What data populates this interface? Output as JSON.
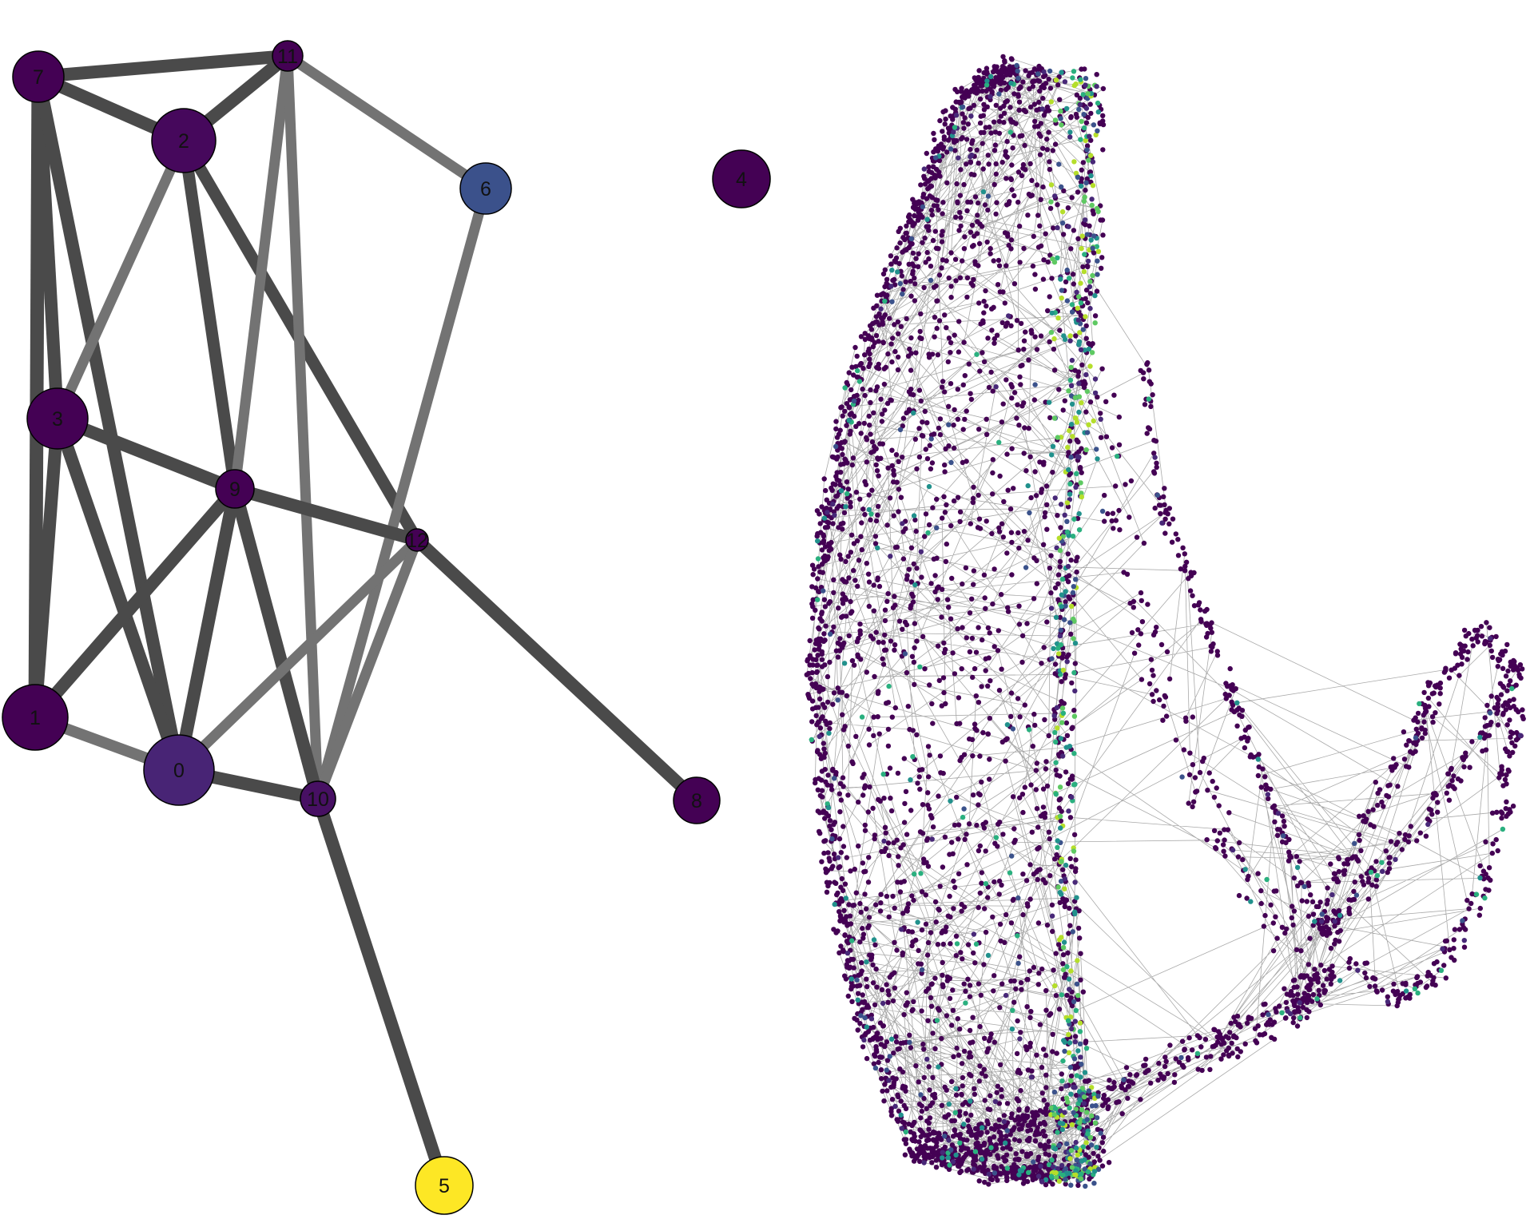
{
  "colors": {
    "edge": "#4a4a4a",
    "edge_light": "#737373",
    "cell_edge": "#8c8c8c",
    "viridis_low": "#440154",
    "viridis_mid_low": "#482878",
    "viridis_mid": "#3b528b",
    "viridis_teal": "#21918c",
    "viridis_green": "#5ec962",
    "viridis_high": "#fde725"
  },
  "paga_graph": {
    "nodes": [
      {
        "id": "0",
        "label": "0",
        "color": "#482475"
      },
      {
        "id": "1",
        "label": "1",
        "color": "#440154"
      },
      {
        "id": "2",
        "label": "2",
        "color": "#46085c"
      },
      {
        "id": "3",
        "label": "3",
        "color": "#440154"
      },
      {
        "id": "4",
        "label": "4",
        "color": "#440154"
      },
      {
        "id": "5",
        "label": "5",
        "color": "#fde725"
      },
      {
        "id": "6",
        "label": "6",
        "color": "#3b518b"
      },
      {
        "id": "7",
        "label": "7",
        "color": "#440154"
      },
      {
        "id": "8",
        "label": "8",
        "color": "#440154"
      },
      {
        "id": "9",
        "label": "9",
        "color": "#440154"
      },
      {
        "id": "10",
        "label": "10",
        "color": "#471063"
      },
      {
        "id": "11",
        "label": "11",
        "color": "#440154"
      },
      {
        "id": "12",
        "label": "12",
        "color": "#440154"
      }
    ],
    "edges": [
      {
        "source": "7",
        "target": "11",
        "weight": 0.9
      },
      {
        "source": "7",
        "target": "2",
        "weight": 0.85
      },
      {
        "source": "7",
        "target": "3",
        "weight": 0.9
      },
      {
        "source": "7",
        "target": "1",
        "weight": 1.0
      },
      {
        "source": "7",
        "target": "0",
        "weight": 0.85
      },
      {
        "source": "2",
        "target": "11",
        "weight": 0.85
      },
      {
        "source": "2",
        "target": "3",
        "weight": 0.6
      },
      {
        "source": "2",
        "target": "9",
        "weight": 0.8
      },
      {
        "source": "2",
        "target": "12",
        "weight": 0.8
      },
      {
        "source": "11",
        "target": "6",
        "weight": 0.6
      },
      {
        "source": "11",
        "target": "9",
        "weight": 0.6
      },
      {
        "source": "11",
        "target": "10",
        "weight": 0.6
      },
      {
        "source": "6",
        "target": "10",
        "weight": 0.6
      },
      {
        "source": "3",
        "target": "9",
        "weight": 0.85
      },
      {
        "source": "3",
        "target": "1",
        "weight": 0.9
      },
      {
        "source": "3",
        "target": "0",
        "weight": 0.85
      },
      {
        "source": "9",
        "target": "12",
        "weight": 0.85
      },
      {
        "source": "9",
        "target": "1",
        "weight": 0.85
      },
      {
        "source": "9",
        "target": "0",
        "weight": 0.85
      },
      {
        "source": "9",
        "target": "10",
        "weight": 0.85
      },
      {
        "source": "12",
        "target": "8",
        "weight": 0.85
      },
      {
        "source": "12",
        "target": "0",
        "weight": 0.6
      },
      {
        "source": "12",
        "target": "10",
        "weight": 0.6
      },
      {
        "source": "1",
        "target": "0",
        "weight": 0.7
      },
      {
        "source": "0",
        "target": "10",
        "weight": 0.85
      },
      {
        "source": "10",
        "target": "5",
        "weight": 0.85
      }
    ]
  },
  "cell_embedding": {
    "point_colors": [
      "#440154",
      "#440154",
      "#440154",
      "#440154",
      "#440154",
      "#440154",
      "#482878",
      "#3b528b",
      "#21918c",
      "#2ab07f",
      "#5ec962",
      "#b5de2b"
    ]
  }
}
